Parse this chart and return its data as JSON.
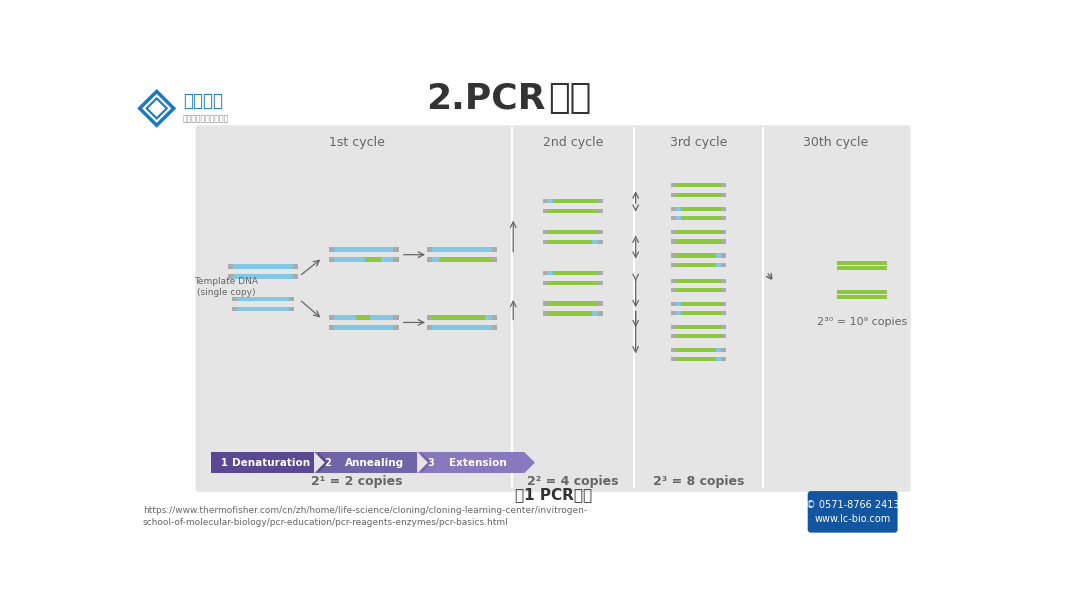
{
  "bg_color": "#ffffff",
  "panel_bg": "#e5e5e5",
  "blue": "#82c8e5",
  "green": "#8dc63f",
  "gray": "#aaaaaa",
  "arrow_c": "#666666",
  "purple_dark": "#5a4892",
  "purple_mid": "#7065a8",
  "purple_light": "#8878be",
  "brand_blue": "#1a7abf",
  "dark_blue_box": "#1255a0",
  "title_color": "#333333",
  "text_gray": "#666666",
  "white": "#ffffff",
  "title_bold": "2.PCR",
  "title_normal": "原理",
  "logo_text": "联川生物",
  "logo_sub": "掌握基因科技核心技术",
  "caption": "图1 PCR原理",
  "url_line1": "https://www.thermofisher.com/cn/zh/home/life-science/cloning/cloning-learning-center/invitrogen-",
  "url_line2": "school-of-molecular-biology/pcr-education/pcr-reagents-enzymes/pcr-basics.html",
  "contact": "0571-8766 2413",
  "website": "www.lc-bio.com",
  "step1": "1  Denaturation",
  "step2": "2  Annealing",
  "step3": "3  Extension",
  "lbl_1st": "1st cycle",
  "lbl_2nd": "2nd cycle",
  "lbl_3rd": "3rd cycle",
  "lbl_30th": "30th cycle",
  "lbl_c1": "2¹ = 2 copies",
  "lbl_c2": "2² = 4 copies",
  "lbl_c3": "2³ = 8 copies",
  "lbl_tmpl": "Template DNA\n(single copy)",
  "lbl_exp": "2³⁰ = 10⁹ copies"
}
